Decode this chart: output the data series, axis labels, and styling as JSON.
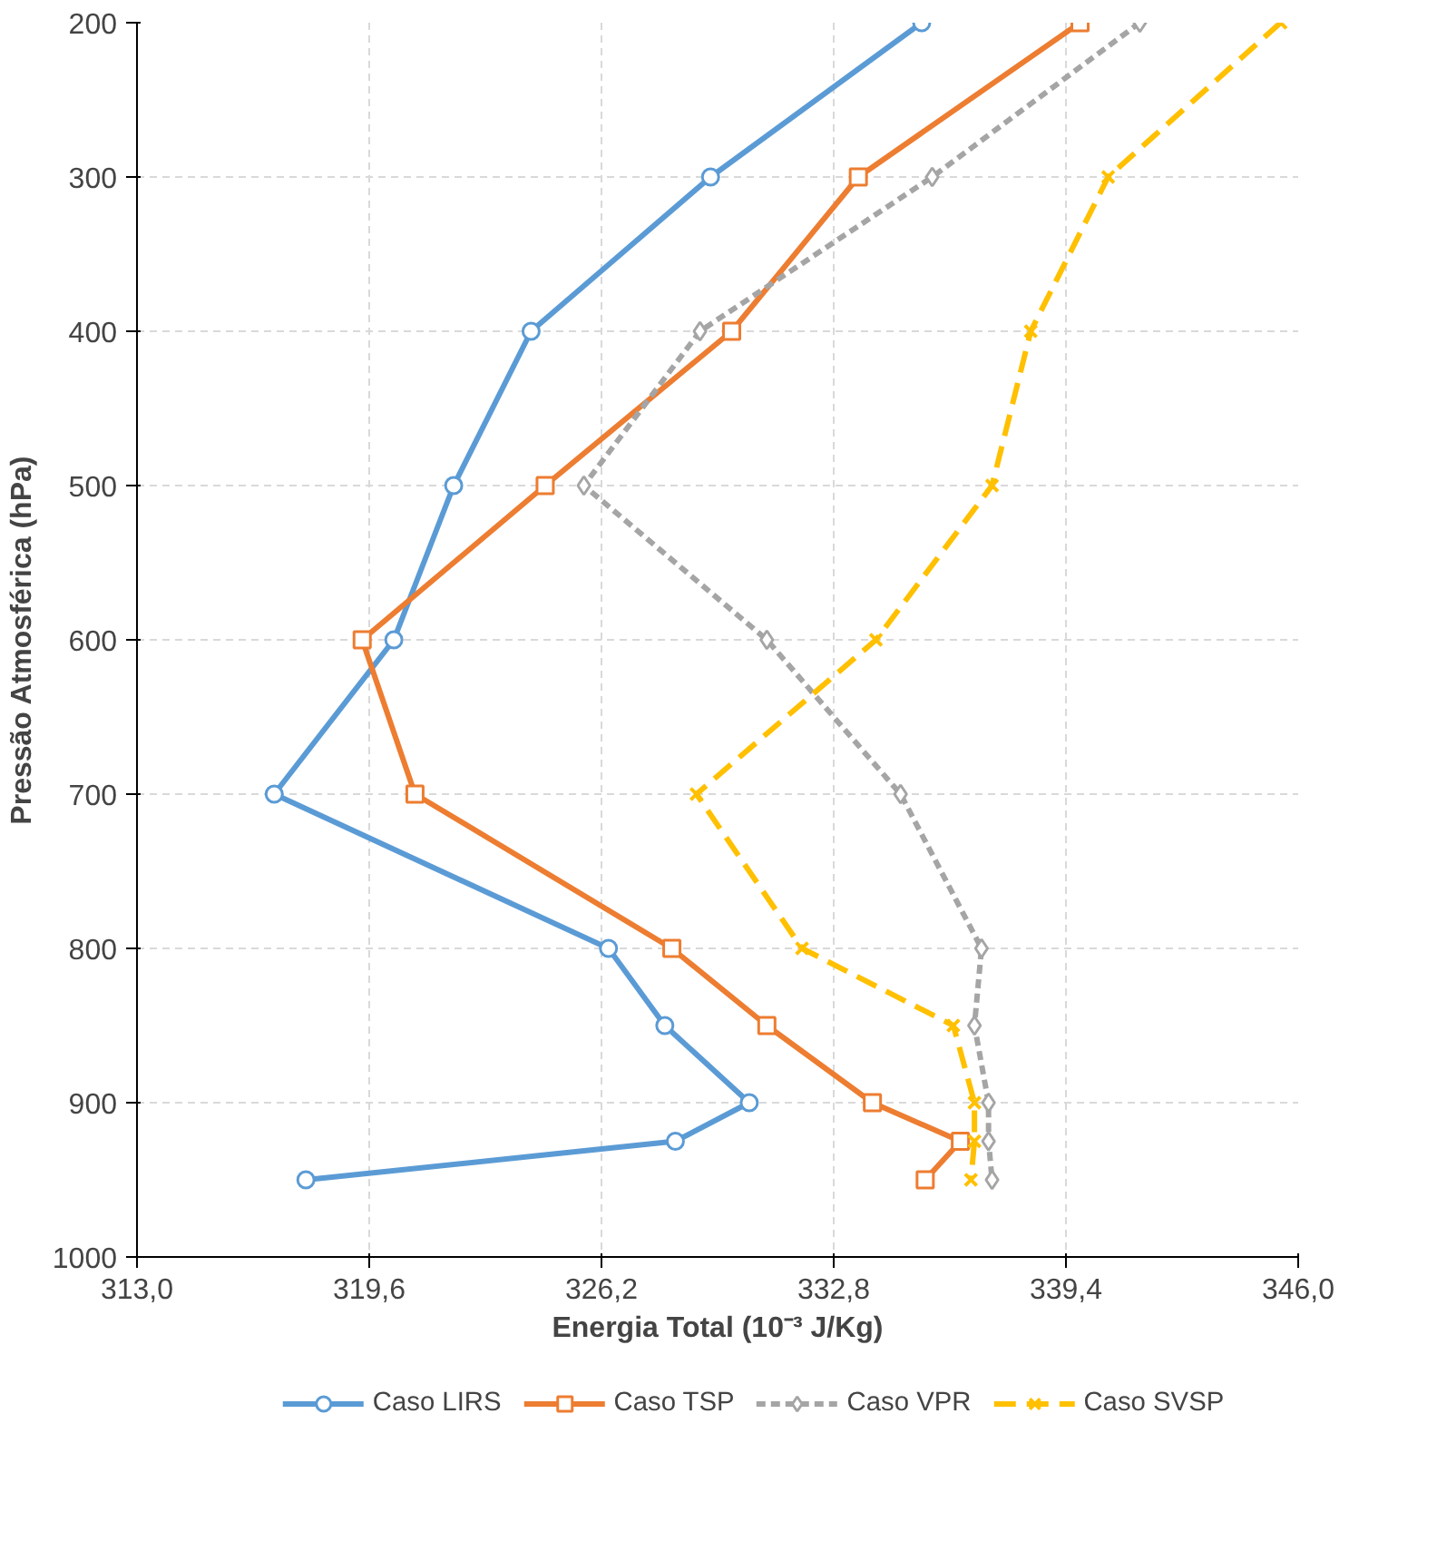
{
  "chart_data": {
    "type": "line",
    "xlabel": "Energia Total (10⁻³ J/Kg)",
    "ylabel": "Pressão Atmosférica (hPa)",
    "series": [
      {
        "name": "Caso LIRS",
        "color": "#5b9bd5",
        "marker": "circle",
        "line_style": "solid",
        "x": [
          335.3,
          329.3,
          324.2,
          322.0,
          320.3,
          316.9,
          326.4,
          328.0,
          330.4,
          328.3,
          317.8
        ],
        "values": [
          200,
          300,
          400,
          500,
          600,
          700,
          800,
          850,
          900,
          925,
          950
        ]
      },
      {
        "name": "Caso TSP",
        "color": "#ed7d31",
        "marker": "square",
        "line_style": "solid",
        "x": [
          339.8,
          333.5,
          329.9,
          324.6,
          319.4,
          320.9,
          328.2,
          330.9,
          333.9,
          336.4,
          335.4
        ],
        "values": [
          200,
          300,
          400,
          500,
          600,
          700,
          800,
          850,
          900,
          925,
          950
        ]
      },
      {
        "name": "Caso VPR",
        "color": "#a5a5a5",
        "marker": "diamond",
        "line_style": "dotted",
        "x": [
          341.5,
          335.6,
          329.0,
          325.7,
          330.9,
          334.7,
          337.0,
          336.8,
          337.2,
          337.2,
          337.3
        ],
        "values": [
          200,
          300,
          400,
          500,
          600,
          700,
          800,
          850,
          900,
          925,
          950
        ]
      },
      {
        "name": "Caso SVSP",
        "color": "#ffc000",
        "marker": "cross",
        "line_style": "dashed",
        "x": [
          345.5,
          340.6,
          338.4,
          337.3,
          334.0,
          328.9,
          331.9,
          336.2,
          336.8,
          336.8,
          336.7
        ],
        "values": [
          200,
          300,
          400,
          500,
          600,
          700,
          800,
          850,
          900,
          925,
          950
        ]
      }
    ],
    "xlim": [
      313,
      346
    ],
    "xticks": [
      {
        "value": 313,
        "label": "313,0"
      },
      {
        "value": 319.6,
        "label": "319,6"
      },
      {
        "value": 326.2,
        "label": "326,2"
      },
      {
        "value": 332.8,
        "label": "332,8"
      },
      {
        "value": 339.4,
        "label": "339,4"
      },
      {
        "value": 346,
        "label": "346,0"
      }
    ],
    "ylim": [
      1000,
      200
    ],
    "yticks": [
      200,
      300,
      400,
      500,
      600,
      700,
      800,
      900,
      1000
    ],
    "grid": true,
    "legend": "bottom"
  }
}
